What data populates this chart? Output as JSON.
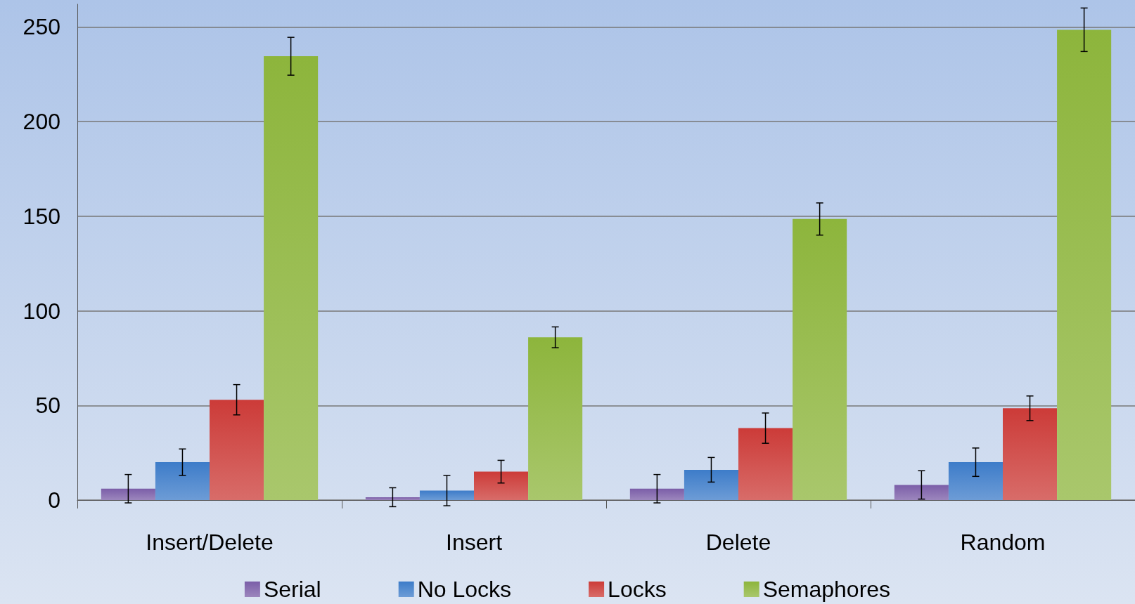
{
  "chart_data": {
    "type": "bar",
    "categories": [
      "Insert/Delete",
      "Insert",
      "Delete",
      "Random"
    ],
    "series": [
      {
        "name": "Serial",
        "color": "#7b5ea8",
        "values": [
          6,
          1.5,
          6,
          8
        ],
        "errors": [
          7.5,
          5,
          7.5,
          7.5
        ]
      },
      {
        "name": "No Locks",
        "color": "#3d7cc9",
        "values": [
          20,
          5,
          16,
          20
        ],
        "errors": [
          7,
          8,
          6.5,
          7.5
        ]
      },
      {
        "name": "Locks",
        "color": "#cc3b38",
        "values": [
          53,
          15,
          38,
          48.5
        ],
        "errors": [
          8,
          6,
          8,
          6.5
        ]
      },
      {
        "name": "Semaphores",
        "color": "#8db53c",
        "values": [
          234.5,
          86,
          148.5,
          248.5
        ],
        "errors": [
          10,
          5.5,
          8.5,
          11.5
        ]
      }
    ],
    "ylim": [
      0,
      262
    ],
    "yticks": [
      0,
      50,
      100,
      150,
      200,
      250
    ],
    "grid": "y",
    "legend": "bottom"
  }
}
